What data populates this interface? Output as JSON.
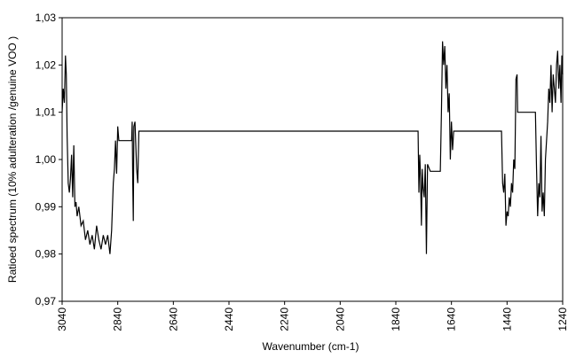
{
  "chart_data": {
    "type": "line",
    "x_label": "Wavenumber (cm-1)",
    "y_label": "Ratioed spectrum (10% adulteration /genuine VOO )",
    "xlim": [
      3040,
      1240
    ],
    "xticks": [
      3040,
      2840,
      2640,
      2440,
      2240,
      2040,
      1840,
      1640,
      1440,
      1240
    ],
    "ylim": [
      0.97,
      1.03
    ],
    "yticks": [
      {
        "value": 0.97,
        "label": "0,97"
      },
      {
        "value": 0.98,
        "label": "0,98"
      },
      {
        "value": 0.99,
        "label": "0,99"
      },
      {
        "value": 1.0,
        "label": "1,00"
      },
      {
        "value": 1.01,
        "label": "1,01"
      },
      {
        "value": 1.02,
        "label": "1,02"
      },
      {
        "value": 1.03,
        "label": "1,03"
      }
    ],
    "color": "#000000",
    "x": [
      3040,
      3036,
      3032,
      3028,
      3025,
      3022,
      3018,
      3014,
      3010,
      3006,
      3002,
      2998,
      2994,
      2990,
      2986,
      2980,
      2972,
      2964,
      2956,
      2948,
      2940,
      2932,
      2924,
      2916,
      2908,
      2900,
      2892,
      2884,
      2876,
      2868,
      2862,
      2856,
      2852,
      2848,
      2844,
      2840,
      2836,
      2790,
      2788,
      2786,
      2784,
      2782,
      2778,
      2772,
      2768,
      2764,
      1760,
      1757,
      1754,
      1751,
      1748,
      1745,
      1742,
      1738,
      1734,
      1730,
      1726,
      1716,
      1680,
      1676,
      1672,
      1668,
      1664,
      1660,
      1656,
      1652,
      1648,
      1644,
      1640,
      1636,
      1632,
      1460,
      1456,
      1452,
      1448,
      1444,
      1440,
      1436,
      1432,
      1428,
      1424,
      1420,
      1416,
      1412,
      1408,
      1404,
      1402,
      1338,
      1334,
      1330,
      1326,
      1322,
      1318,
      1314,
      1310,
      1306,
      1302,
      1298,
      1294,
      1290,
      1286,
      1282,
      1278,
      1274,
      1270,
      1266,
      1262,
      1258,
      1254,
      1250,
      1246,
      1243,
      1240
    ],
    "values": [
      1.01,
      1.015,
      1.012,
      1.022,
      1.018,
      1.005,
      0.995,
      0.993,
      0.996,
      1.001,
      0.992,
      1.003,
      0.99,
      0.991,
      0.988,
      0.99,
      0.986,
      0.987,
      0.983,
      0.985,
      0.982,
      0.984,
      0.981,
      0.986,
      0.983,
      0.981,
      0.984,
      0.982,
      0.984,
      0.98,
      0.985,
      0.995,
      0.998,
      1.004,
      0.997,
      1.007,
      1.004,
      1.004,
      1.008,
      0.995,
      0.987,
      1.007,
      1.008,
      0.998,
      0.995,
      1.006,
      1.006,
      0.993,
      1.001,
      0.996,
      0.986,
      0.998,
      0.994,
      0.992,
      0.999,
      0.98,
      0.999,
      0.9975,
      0.9975,
      1.01,
      1.025,
      1.02,
      1.024,
      1.015,
      1.02,
      1.01,
      1.014,
      1.0,
      1.008,
      1.002,
      1.006,
      1.006,
      0.995,
      0.993,
      0.997,
      0.986,
      0.989,
      0.988,
      0.992,
      0.99,
      0.995,
      0.993,
      1.0,
      0.998,
      1.017,
      1.018,
      1.01,
      1.01,
      0.998,
      0.988,
      0.995,
      0.992,
      1.005,
      0.989,
      0.993,
      0.988,
      1.0,
      1.004,
      1.008,
      1.015,
      1.012,
      1.02,
      1.01,
      1.018,
      1.015,
      1.012,
      1.02,
      1.023,
      1.015,
      1.02,
      1.012,
      1.022,
      1.018
    ]
  }
}
